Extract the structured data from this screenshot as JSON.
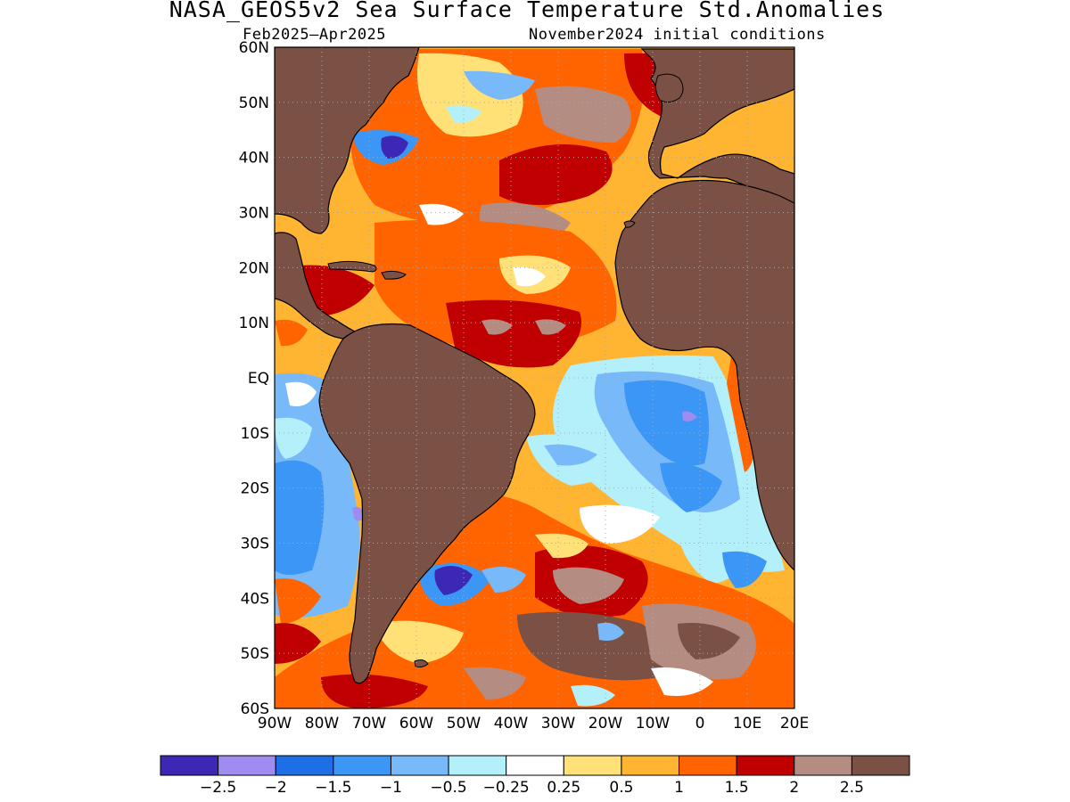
{
  "title": "NASA_GEOS5v2 Sea Surface Temperature Std.Anomalies",
  "subtitle_left": "Feb2025–Apr2025",
  "subtitle_right": "November2024 initial conditions",
  "map": {
    "lon_range": [
      -90,
      20
    ],
    "lat_range": [
      -60,
      60
    ],
    "lat_labels": [
      "60N",
      "50N",
      "40N",
      "30N",
      "20N",
      "10N",
      "EQ",
      "10S",
      "20S",
      "30S",
      "40S",
      "50S",
      "60S"
    ],
    "lon_labels": [
      "90W",
      "80W",
      "70W",
      "60W",
      "50W",
      "40W",
      "30W",
      "20W",
      "10W",
      "0",
      "10E",
      "20E"
    ],
    "land_color": "#7b5045"
  },
  "colorbar": {
    "colors": [
      "#3c28b4",
      "#a08cf0",
      "#1e6ee6",
      "#3c96f5",
      "#78b9fa",
      "#b4f0fa",
      "#ffffff",
      "#ffe178",
      "#ffb432",
      "#ff6400",
      "#c00000",
      "#b48c82",
      "#7b5045"
    ],
    "labels": [
      "−2.5",
      "−2",
      "−1.5",
      "−1",
      "−0.5",
      "−0.25",
      "0.25",
      "0.5",
      "1",
      "1.5",
      "2",
      "2.5"
    ]
  }
}
